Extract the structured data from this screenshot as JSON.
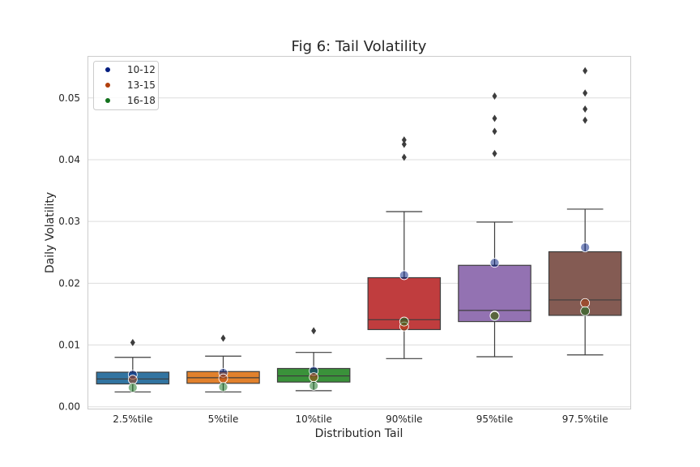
{
  "chart_data": {
    "type": "box",
    "title": "Fig 6: Tail Volatility",
    "xlabel": "Distribution Tail",
    "ylabel": "Daily Volatility",
    "ylim": [
      -0.0003,
      0.0568
    ],
    "yticks": [
      0.0,
      0.01,
      0.02,
      0.03,
      0.04,
      0.05
    ],
    "ytick_labels": [
      "0.00",
      "0.01",
      "0.02",
      "0.03",
      "0.04",
      "0.05"
    ],
    "grid": true,
    "legend_position": "upper-left",
    "categories": [
      "2.5%tile",
      "5%tile",
      "10%tile",
      "90%tile",
      "95%tile",
      "97.5%tile"
    ],
    "boxes": [
      {
        "category": "2.5%tile",
        "color": "#3274a1",
        "whisker_low": 0.0024,
        "q1": 0.0037,
        "median": 0.0045,
        "q3": 0.0056,
        "whisker_high": 0.008,
        "outliers": [
          0.0104
        ]
      },
      {
        "category": "5%tile",
        "color": "#e1812c",
        "whisker_low": 0.0024,
        "q1": 0.0038,
        "median": 0.0047,
        "q3": 0.0057,
        "whisker_high": 0.0082,
        "outliers": [
          0.0111
        ]
      },
      {
        "category": "10%tile",
        "color": "#3a923a",
        "whisker_low": 0.0026,
        "q1": 0.004,
        "median": 0.005,
        "q3": 0.0062,
        "whisker_high": 0.0088,
        "outliers": [
          0.0123
        ]
      },
      {
        "category": "90%tile",
        "color": "#c03d3e",
        "whisker_low": 0.0078,
        "q1": 0.0125,
        "median": 0.0141,
        "q3": 0.0209,
        "whisker_high": 0.0316,
        "outliers": [
          0.0404,
          0.0425,
          0.0432
        ]
      },
      {
        "category": "95%tile",
        "color": "#9372b2",
        "whisker_low": 0.0081,
        "q1": 0.0138,
        "median": 0.0156,
        "q3": 0.0229,
        "whisker_high": 0.0299,
        "outliers": [
          0.041,
          0.0446,
          0.0467,
          0.0503
        ]
      },
      {
        "category": "97.5%tile",
        "color": "#845b53",
        "whisker_low": 0.0084,
        "q1": 0.0148,
        "median": 0.0173,
        "q3": 0.0251,
        "whisker_high": 0.032,
        "outliers": [
          0.0464,
          0.0482,
          0.0508,
          0.0544
        ]
      }
    ],
    "series": [
      {
        "name": "10-12",
        "color": "#001c7f",
        "values": [
          0.0052,
          0.0055,
          0.0058,
          0.0213,
          0.0233,
          0.0258
        ]
      },
      {
        "name": "13-15",
        "color": "#b1400d",
        "values": [
          0.0044,
          0.0046,
          0.0048,
          0.013,
          0.0148,
          0.0168
        ]
      },
      {
        "name": "16-18",
        "color": "#12711c",
        "values": [
          0.0031,
          0.0032,
          0.0034,
          0.0138,
          0.0147,
          0.0155
        ]
      }
    ]
  }
}
